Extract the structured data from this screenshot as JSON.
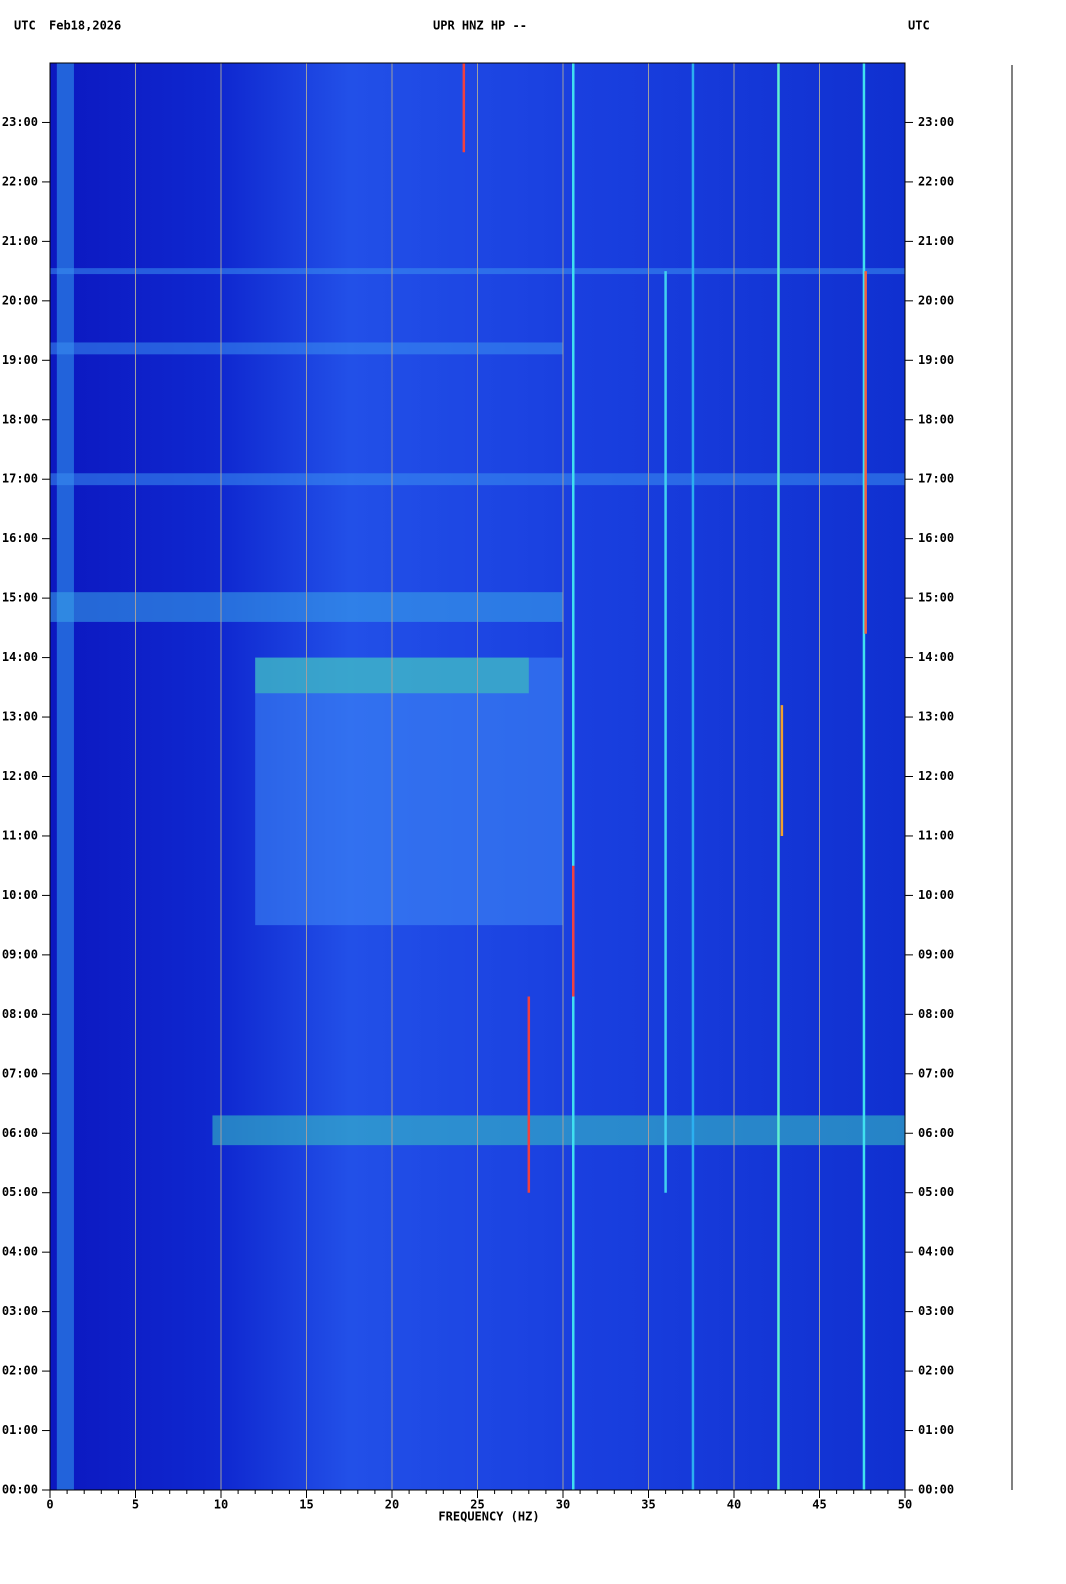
{
  "chart_data": {
    "type": "spectrogram",
    "title": "UPR HNZ HP --",
    "timezone_left": "UTC",
    "date": "Feb18,2026",
    "timezone_right": "UTC",
    "xlabel": "FREQUENCY (HZ)",
    "xlim": [
      0,
      50
    ],
    "xticks": [
      0,
      5,
      10,
      15,
      20,
      25,
      30,
      35,
      40,
      45,
      50
    ],
    "xminorticks": [
      1,
      2,
      3,
      4,
      6,
      7,
      8,
      9,
      11,
      12,
      13,
      14,
      16,
      17,
      18,
      19,
      21,
      22,
      23,
      24,
      26,
      27,
      28,
      29,
      31,
      32,
      33,
      34,
      36,
      37,
      38,
      39,
      41,
      42,
      43,
      44,
      46,
      47,
      48,
      49
    ],
    "ylim": [
      0,
      24
    ],
    "yticks": [
      {
        "value": 0,
        "label": "00:00"
      },
      {
        "value": 1,
        "label": "01:00"
      },
      {
        "value": 2,
        "label": "02:00"
      },
      {
        "value": 3,
        "label": "03:00"
      },
      {
        "value": 4,
        "label": "04:00"
      },
      {
        "value": 5,
        "label": "05:00"
      },
      {
        "value": 6,
        "label": "06:00"
      },
      {
        "value": 7,
        "label": "07:00"
      },
      {
        "value": 8,
        "label": "08:00"
      },
      {
        "value": 9,
        "label": "09:00"
      },
      {
        "value": 10,
        "label": "10:00"
      },
      {
        "value": 11,
        "label": "11:00"
      },
      {
        "value": 12,
        "label": "12:00"
      },
      {
        "value": 13,
        "label": "13:00"
      },
      {
        "value": 14,
        "label": "14:00"
      },
      {
        "value": 15,
        "label": "15:00"
      },
      {
        "value": 16,
        "label": "16:00"
      },
      {
        "value": 17,
        "label": "17:00"
      },
      {
        "value": 18,
        "label": "18:00"
      },
      {
        "value": 19,
        "label": "19:00"
      },
      {
        "value": 20,
        "label": "20:00"
      },
      {
        "value": 21,
        "label": "21:00"
      },
      {
        "value": 22,
        "label": "22:00"
      },
      {
        "value": 23,
        "label": "23:00"
      }
    ],
    "grid": true,
    "bands": [
      {
        "fmin": 0.4,
        "fmax": 1.4,
        "start": 0,
        "end": 24,
        "color": "#35a0f0"
      },
      {
        "fmin": 12,
        "fmax": 30,
        "start": 9.5,
        "end": 14,
        "color": "#3f8cf5"
      },
      {
        "fmin": 9.5,
        "fmax": 50,
        "start": 5.8,
        "end": 6.3,
        "color": "#38c8c0"
      },
      {
        "fmin": 12,
        "fmax": 28,
        "start": 13.4,
        "end": 14,
        "color": "#40d0b0"
      },
      {
        "fmin": 0,
        "fmax": 30,
        "start": 14.6,
        "end": 15.1,
        "color": "#3aa8e8"
      },
      {
        "fmin": 0,
        "fmax": 50,
        "start": 16.9,
        "end": 17.1,
        "color": "#3a90f0"
      },
      {
        "fmin": 0,
        "fmax": 30,
        "start": 19.1,
        "end": 19.3,
        "color": "#3a90f0"
      },
      {
        "fmin": 0,
        "fmax": 50,
        "start": 20.45,
        "end": 20.55,
        "color": "#3a90f0"
      }
    ],
    "lines": [
      {
        "frequency": 30.6,
        "start": 0,
        "end": 24,
        "color": "#40e0f0"
      },
      {
        "frequency": 37.6,
        "start": 0,
        "end": 24,
        "color": "#2cb0f0"
      },
      {
        "frequency": 42.6,
        "start": 0,
        "end": 24,
        "color": "#60f0d0"
      },
      {
        "frequency": 47.6,
        "start": 0,
        "end": 24,
        "color": "#40e0f0"
      },
      {
        "frequency": 36,
        "start": 5,
        "end": 20.5,
        "color": "#40d0f0"
      },
      {
        "frequency": 28,
        "start": 5,
        "end": 8.3,
        "color": "#f04040"
      },
      {
        "frequency": 30.6,
        "start": 8.3,
        "end": 10.5,
        "color": "#f04040"
      },
      {
        "frequency": 24.2,
        "start": 22.5,
        "end": 24,
        "color": "#f04040"
      },
      {
        "frequency": 42.8,
        "start": 11,
        "end": 13.2,
        "color": "#f0a030"
      },
      {
        "frequency": 47.7,
        "start": 14.4,
        "end": 20.5,
        "color": "#f06040"
      }
    ]
  }
}
